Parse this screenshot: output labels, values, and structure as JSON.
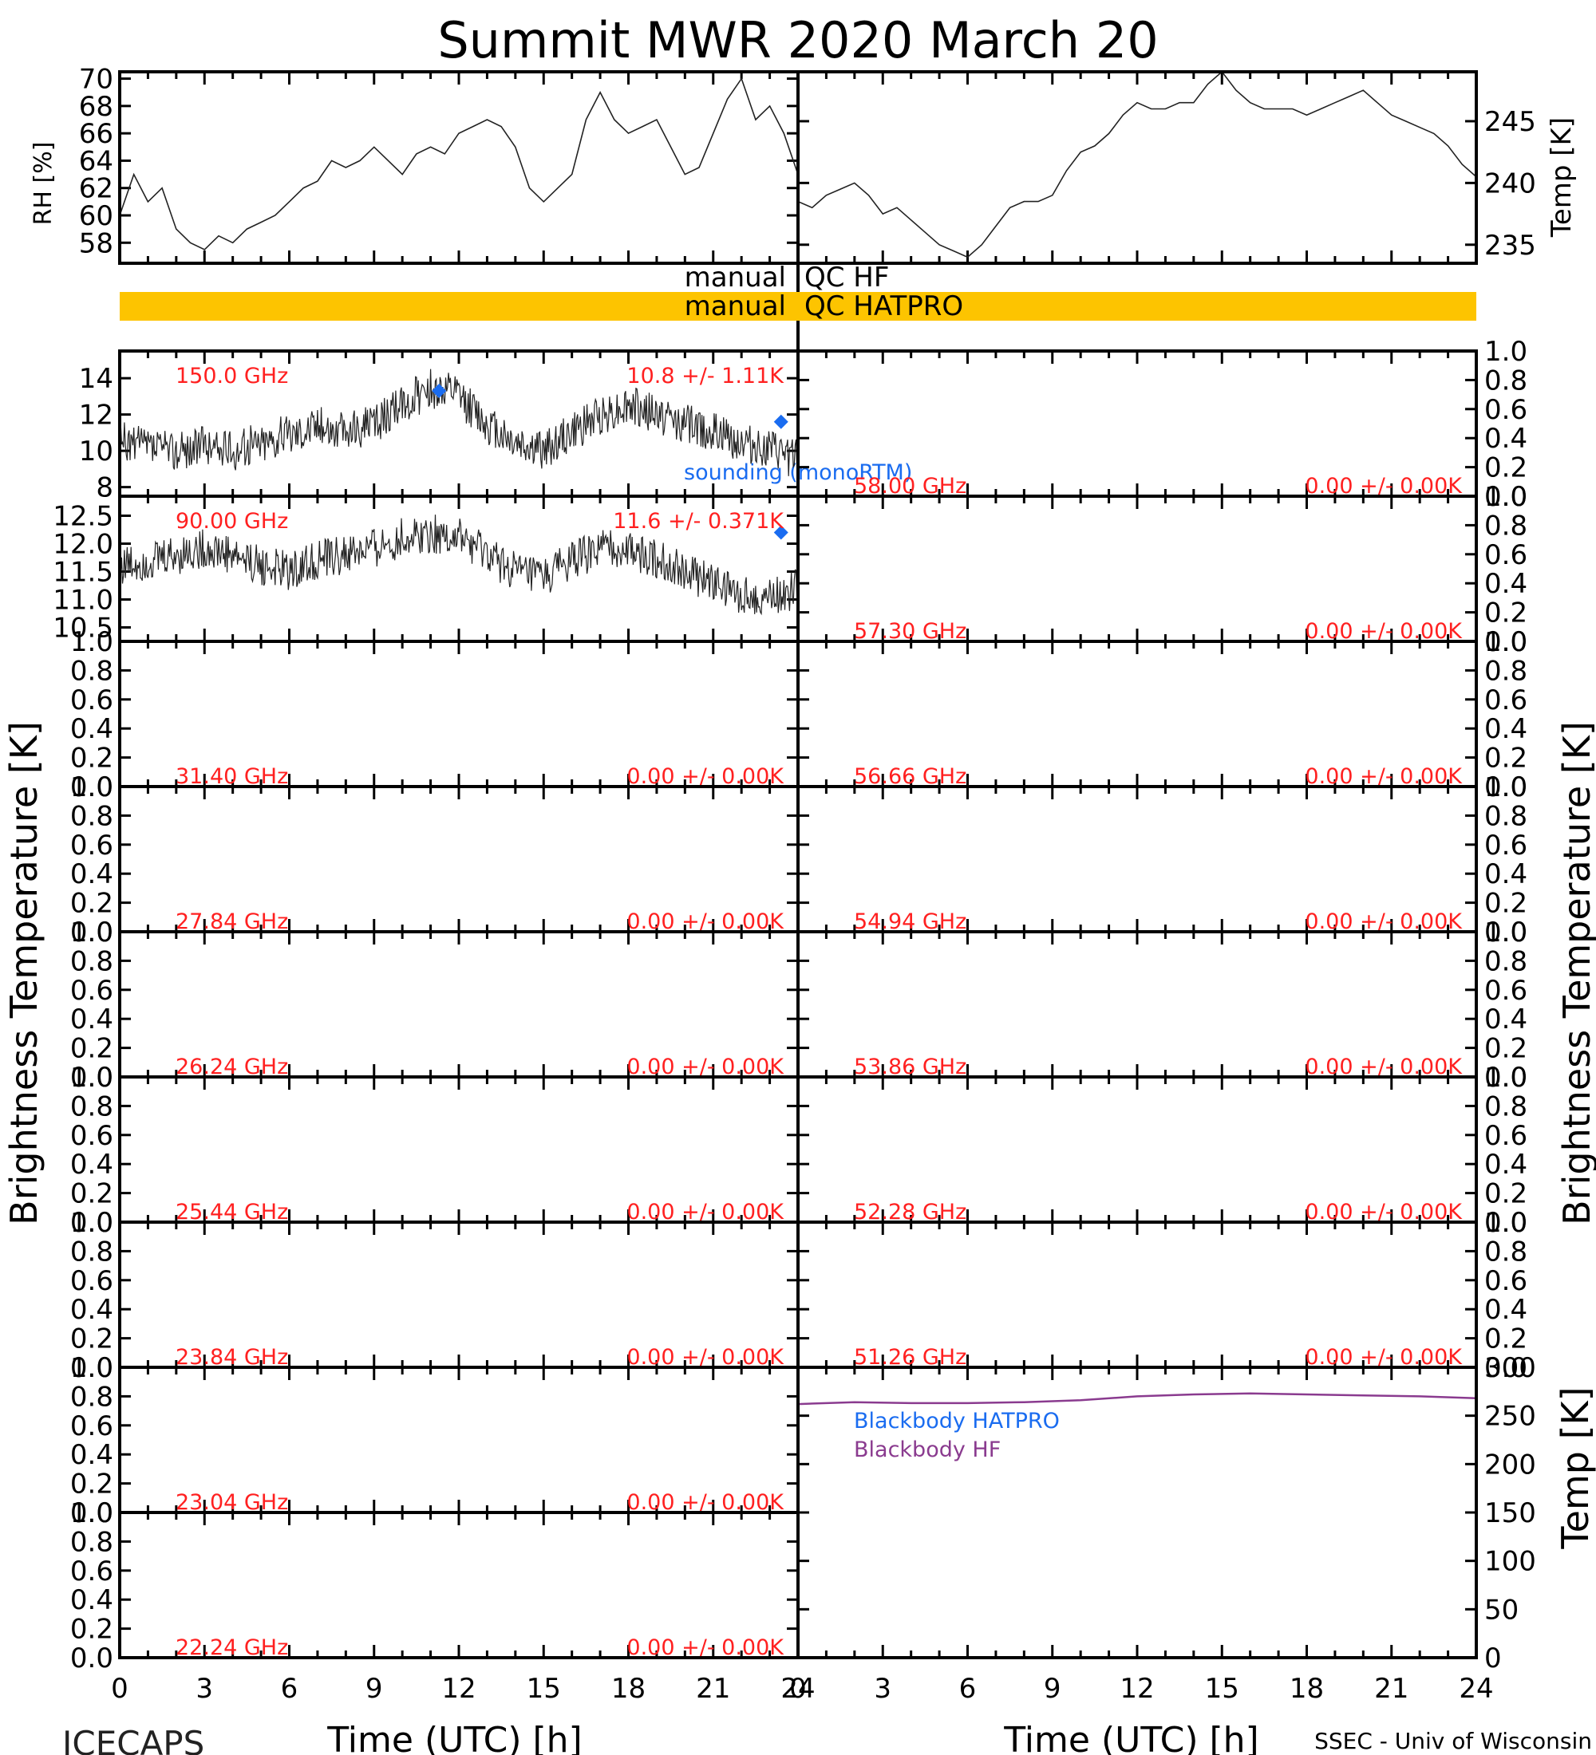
{
  "title": "Summit MWR 2020 March 20",
  "footer": {
    "left": "ICECAPS",
    "right": "SSEC - Univ of Wisconsin",
    "xlabel_left": "Time (UTC) [h]",
    "xlabel_right": "Time (UTC) [h]"
  },
  "axis_labels": {
    "rh": "RH [%]",
    "temp_top": "Temp [K]",
    "tb_left": "Brightness Temperature [K]",
    "tb_right": "Brightness Temperature [K]",
    "temp_bb": "Temp [K]"
  },
  "qc": {
    "hf_label_left": "manual",
    "hf_label_right": "QC HF",
    "hatpro_label_left": "manual",
    "hatpro_label_right": "QC HATPRO",
    "hatpro_bar_color": "#fdc400"
  },
  "legend": {
    "sounding": "sounding (monoRTM)",
    "bb_hatpro": "Blackbody HATPRO",
    "bb_hf": "Blackbody HF"
  },
  "colors": {
    "red": "#ff2020",
    "blue": "#1a6cf0",
    "purple": "#8a3b8f"
  },
  "chart_data": [
    {
      "type": "line",
      "name": "rh",
      "ylabel": "RH [%]",
      "xlim": [
        0,
        24
      ],
      "ylim": [
        56.5,
        70.5
      ],
      "yticks": [
        "58",
        "60",
        "62",
        "64",
        "66",
        "68",
        "70"
      ],
      "x": [
        0,
        0.5,
        1,
        1.5,
        2,
        2.5,
        3,
        3.5,
        4,
        4.5,
        5,
        5.5,
        6,
        6.5,
        7,
        7.5,
        8,
        8.5,
        9,
        9.5,
        10,
        10.5,
        11,
        11.5,
        12,
        12.5,
        13,
        13.5,
        14,
        14.5,
        15,
        15.5,
        16,
        16.5,
        17,
        17.5,
        18,
        18.5,
        19,
        19.5,
        20,
        20.5,
        21,
        21.5,
        22,
        22.5,
        23,
        23.5,
        24
      ],
      "y": [
        60,
        63,
        61,
        62,
        59,
        58,
        57.5,
        58.5,
        58,
        59,
        59.5,
        60,
        61,
        62,
        62.5,
        64,
        63.5,
        64,
        65,
        64,
        63,
        64.5,
        65,
        64.5,
        66,
        66.5,
        67,
        66.5,
        65,
        62,
        61,
        62,
        63,
        67,
        69,
        67,
        66,
        66.5,
        67,
        65,
        63,
        63.5,
        66,
        68.5,
        70,
        67,
        68,
        66,
        63
      ]
    },
    {
      "type": "line",
      "name": "temp",
      "ylabel": "Temp [K]",
      "xlim": [
        0,
        24
      ],
      "ylim": [
        233.5,
        249
      ],
      "yticks": [
        "235",
        "240",
        "245"
      ],
      "x": [
        0,
        0.5,
        1,
        1.5,
        2,
        2.5,
        3,
        3.5,
        4,
        4.5,
        5,
        5.5,
        6,
        6.5,
        7,
        7.5,
        8,
        8.5,
        9,
        9.5,
        10,
        10.5,
        11,
        11.5,
        12,
        12.5,
        13,
        13.5,
        14,
        14.5,
        15,
        15.5,
        16,
        16.5,
        17,
        17.5,
        18,
        18.5,
        19,
        19.5,
        20,
        20.5,
        21,
        21.5,
        22,
        22.5,
        23,
        23.5,
        24
      ],
      "y": [
        238.5,
        238,
        239,
        239.5,
        240,
        239,
        237.5,
        238,
        237,
        236,
        235,
        234.5,
        234,
        235,
        236.5,
        238,
        238.5,
        238.5,
        239,
        241,
        242.5,
        243,
        244,
        245.5,
        246.5,
        246,
        246,
        246.5,
        246.5,
        248,
        249,
        247.5,
        246.5,
        246,
        246,
        246,
        245.5,
        246,
        246.5,
        247,
        247.5,
        246.5,
        245.5,
        245,
        244.5,
        244,
        243,
        241.5,
        240.5
      ]
    },
    {
      "type": "line",
      "name": "150.0 GHz",
      "label": "150.0 GHz",
      "stat": "10.8 +/-  1.11K",
      "xlim": [
        0,
        24
      ],
      "ylim": [
        7.5,
        15.5
      ],
      "yticks": [
        "8",
        "10",
        "12",
        "14"
      ],
      "x": [
        0,
        1,
        2,
        3,
        4,
        5,
        6,
        7,
        8,
        9,
        10,
        11,
        12,
        13,
        14,
        15,
        16,
        17,
        18,
        19,
        20,
        21,
        22,
        23,
        24
      ],
      "y": [
        10.5,
        10.2,
        10,
        10.3,
        10,
        10.5,
        11,
        11.5,
        11,
        11.5,
        12.5,
        13.5,
        13,
        11.5,
        10.5,
        10,
        11,
        12,
        12.5,
        12,
        11.5,
        11,
        10.5,
        10,
        9.5
      ],
      "sounding": {
        "x": [
          11.3,
          23.4
        ],
        "y": [
          13.3,
          11.6
        ]
      }
    },
    {
      "type": "line",
      "name": "90.00 GHz",
      "label": "90.00 GHz",
      "stat": "11.6 +/- 0.371K",
      "xlim": [
        0,
        24
      ],
      "ylim": [
        10.25,
        12.85
      ],
      "yticks": [
        "10.5",
        "11.0",
        "11.5",
        "12.0",
        "12.5"
      ],
      "x": [
        0,
        1,
        2,
        3,
        4,
        5,
        6,
        7,
        8,
        9,
        10,
        11,
        12,
        13,
        14,
        15,
        16,
        17,
        18,
        19,
        20,
        21,
        22,
        23,
        24
      ],
      "y": [
        11.6,
        11.7,
        11.8,
        11.9,
        11.8,
        11.6,
        11.5,
        11.7,
        11.8,
        11.9,
        12.1,
        12.2,
        12.1,
        11.8,
        11.5,
        11.4,
        11.7,
        11.9,
        11.9,
        11.7,
        11.5,
        11.3,
        11.1,
        11.0,
        11.2
      ],
      "sounding": {
        "x": [
          23.4
        ],
        "y": [
          12.2
        ]
      }
    },
    {
      "type": "line",
      "name": "31.40 GHz",
      "label": "31.40 GHz",
      "stat": "0.00 +/- 0.00K",
      "xlim": [
        0,
        24
      ],
      "ylim": [
        0,
        1
      ],
      "yticks": [
        "0.0",
        "0.2",
        "0.4",
        "0.6",
        "0.8",
        "1.0"
      ]
    },
    {
      "type": "line",
      "name": "27.84 GHz",
      "label": "27.84 GHz",
      "stat": "0.00 +/- 0.00K",
      "xlim": [
        0,
        24
      ],
      "ylim": [
        0,
        1
      ],
      "yticks": [
        "0.0",
        "0.2",
        "0.4",
        "0.6",
        "0.8",
        "1.0"
      ]
    },
    {
      "type": "line",
      "name": "26.24 GHz",
      "label": "26.24 GHz",
      "stat": "0.00 +/- 0.00K",
      "xlim": [
        0,
        24
      ],
      "ylim": [
        0,
        1
      ],
      "yticks": [
        "0.0",
        "0.2",
        "0.4",
        "0.6",
        "0.8",
        "1.0"
      ]
    },
    {
      "type": "line",
      "name": "25.44 GHz",
      "label": "25.44 GHz",
      "stat": "0.00 +/- 0.00K",
      "xlim": [
        0,
        24
      ],
      "ylim": [
        0,
        1
      ],
      "yticks": [
        "0.0",
        "0.2",
        "0.4",
        "0.6",
        "0.8",
        "1.0"
      ]
    },
    {
      "type": "line",
      "name": "23.84 GHz",
      "label": "23.84 GHz",
      "stat": "0.00 +/- 0.00K",
      "xlim": [
        0,
        24
      ],
      "ylim": [
        0,
        1
      ],
      "yticks": [
        "0.0",
        "0.2",
        "0.4",
        "0.6",
        "0.8",
        "1.0"
      ]
    },
    {
      "type": "line",
      "name": "23.04 GHz",
      "label": "23.04 GHz",
      "stat": "0.00 +/- 0.00K",
      "xlim": [
        0,
        24
      ],
      "ylim": [
        0,
        1
      ],
      "yticks": [
        "0.0",
        "0.2",
        "0.4",
        "0.6",
        "0.8",
        "1.0"
      ]
    },
    {
      "type": "line",
      "name": "22.24 GHz",
      "label": "22.24 GHz",
      "stat": "0.00 +/- 0.00K",
      "xlim": [
        0,
        24
      ],
      "ylim": [
        0,
        1
      ],
      "yticks": [
        "0.0",
        "0.2",
        "0.4",
        "0.6",
        "0.8",
        "1.0"
      ]
    },
    {
      "type": "line",
      "name": "58.00 GHz",
      "label": "58.00 GHz",
      "stat": "0.00 +/- 0.00K",
      "xlim": [
        0,
        24
      ],
      "ylim": [
        0,
        1
      ],
      "yticks": [
        "0.0",
        "0.2",
        "0.4",
        "0.6",
        "0.8",
        "1.0"
      ]
    },
    {
      "type": "line",
      "name": "57.30 GHz",
      "label": "57.30 GHz",
      "stat": "0.00 +/- 0.00K",
      "xlim": [
        0,
        24
      ],
      "ylim": [
        0,
        1
      ],
      "yticks": [
        "0.0",
        "0.2",
        "0.4",
        "0.6",
        "0.8",
        "1.0"
      ]
    },
    {
      "type": "line",
      "name": "56.66 GHz",
      "label": "56.66 GHz",
      "stat": "0.00 +/- 0.00K",
      "xlim": [
        0,
        24
      ],
      "ylim": [
        0,
        1
      ],
      "yticks": [
        "0.0",
        "0.2",
        "0.4",
        "0.6",
        "0.8",
        "1.0"
      ]
    },
    {
      "type": "line",
      "name": "54.94 GHz",
      "label": "54.94 GHz",
      "stat": "0.00 +/- 0.00K",
      "xlim": [
        0,
        24
      ],
      "ylim": [
        0,
        1
      ],
      "yticks": [
        "0.0",
        "0.2",
        "0.4",
        "0.6",
        "0.8",
        "1.0"
      ]
    },
    {
      "type": "line",
      "name": "53.86 GHz",
      "label": "53.86 GHz",
      "stat": "0.00 +/- 0.00K",
      "xlim": [
        0,
        24
      ],
      "ylim": [
        0,
        1
      ],
      "yticks": [
        "0.0",
        "0.2",
        "0.4",
        "0.6",
        "0.8",
        "1.0"
      ]
    },
    {
      "type": "line",
      "name": "52.28 GHz",
      "label": "52.28 GHz",
      "stat": "0.00 +/- 0.00K",
      "xlim": [
        0,
        24
      ],
      "ylim": [
        0,
        1
      ],
      "yticks": [
        "0.0",
        "0.2",
        "0.4",
        "0.6",
        "0.8",
        "1.0"
      ]
    },
    {
      "type": "line",
      "name": "51.26 GHz",
      "label": "51.26 GHz",
      "stat": "0.00 +/- 0.00K",
      "xlim": [
        0,
        24
      ],
      "ylim": [
        0,
        1
      ],
      "yticks": [
        "0.0",
        "0.2",
        "0.4",
        "0.6",
        "0.8",
        "1.0"
      ]
    },
    {
      "type": "line",
      "name": "blackbody",
      "xlim": [
        0,
        24
      ],
      "ylim": [
        0,
        300
      ],
      "yticks": [
        "0",
        "50",
        "100",
        "150",
        "200",
        "250",
        "300"
      ],
      "series": [
        {
          "name": "Blackbody HF",
          "x": [
            0,
            2,
            4,
            6,
            8,
            10,
            12,
            14,
            16,
            18,
            20,
            22,
            24
          ],
          "y": [
            262,
            264,
            263,
            263,
            264,
            266,
            270,
            272,
            273,
            272,
            271,
            270,
            268
          ]
        },
        {
          "name": "Blackbody HATPRO",
          "x": [
            0,
            24
          ],
          "y": [
            0,
            0
          ]
        }
      ]
    }
  ],
  "xticks": [
    "0",
    "3",
    "6",
    "9",
    "12",
    "15",
    "18",
    "21",
    "24"
  ]
}
